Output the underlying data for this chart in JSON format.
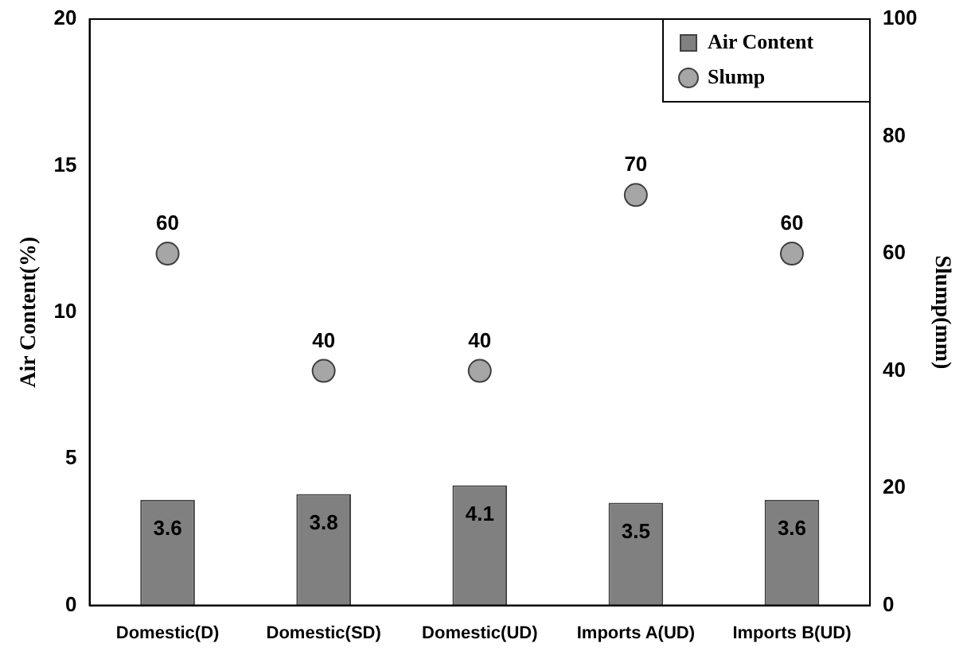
{
  "chart_data": {
    "type": "bar",
    "categories": [
      "Domestic(D)",
      "Domestic(SD)",
      "Domestic(UD)",
      "Imports A(UD)",
      "Imports B(UD)"
    ],
    "series": [
      {
        "name": "Air Content",
        "color": "#808080",
        "values": [
          3.6,
          3.8,
          4.1,
          3.5,
          3.6
        ]
      },
      {
        "name": "Slump",
        "type": "scatter",
        "axis": "y2",
        "color": "#a6a6a6",
        "values": [
          60,
          40,
          40,
          70,
          60
        ]
      }
    ],
    "ylabel": "Air Content(%)",
    "y2label": "Slump(mm)",
    "ylim": [
      0,
      20
    ],
    "yticks": [
      0,
      5,
      10,
      15,
      20
    ],
    "y2lim": [
      0,
      100
    ],
    "y2ticks": [
      0,
      20,
      40,
      60,
      80,
      100
    ],
    "data_labels": true,
    "legend": "top right",
    "grid": false,
    "marker": "circle"
  }
}
